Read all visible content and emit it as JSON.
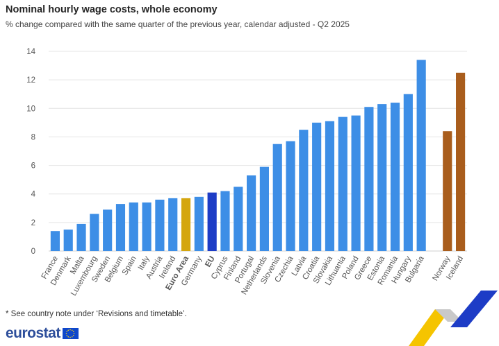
{
  "header": {
    "title": "Nominal hourly wage costs, whole economy",
    "subtitle": "% change compared with the same quarter of the previous year, calendar adjusted - Q2 2025"
  },
  "footnote": "* See country note under ‘Revisions and timetable’.",
  "logo_text": "eurostat",
  "colors": {
    "member": "#3d8ee6",
    "euro_area": "#d4a60e",
    "eu": "#1d3cc6",
    "efta": "#a95d1c",
    "grid": "#e4e4e4",
    "logo": "#2d4e9b"
  },
  "chart_data": {
    "type": "bar",
    "title": "Nominal hourly wage costs, whole economy",
    "subtitle": "% change compared with the same quarter of the previous year, calendar adjusted - Q2 2025",
    "ylim": [
      0,
      14
    ],
    "yticks": [
      0,
      2,
      4,
      6,
      8,
      10,
      12,
      14
    ],
    "grid": true,
    "bars": [
      {
        "label": "France",
        "value": 1.4,
        "group": "member"
      },
      {
        "label": "Denmark",
        "value": 1.5,
        "group": "member"
      },
      {
        "label": "Malta",
        "value": 1.9,
        "group": "member"
      },
      {
        "label": "Luxembourg",
        "value": 2.6,
        "group": "member"
      },
      {
        "label": "Sweden",
        "value": 2.9,
        "group": "member"
      },
      {
        "label": "Belgium",
        "value": 3.3,
        "group": "member"
      },
      {
        "label": "Spain",
        "value": 3.4,
        "group": "member"
      },
      {
        "label": "Italy",
        "value": 3.4,
        "group": "member"
      },
      {
        "label": "Austria",
        "value": 3.6,
        "group": "member"
      },
      {
        "label": "Ireland",
        "value": 3.7,
        "group": "member"
      },
      {
        "label": "Euro Area",
        "value": 3.7,
        "group": "euro_area",
        "bold": true
      },
      {
        "label": "Germany",
        "value": 3.8,
        "group": "member"
      },
      {
        "label": "EU",
        "value": 4.1,
        "group": "eu",
        "bold": true
      },
      {
        "label": "Cyprus",
        "value": 4.2,
        "group": "member"
      },
      {
        "label": "Finland",
        "value": 4.5,
        "group": "member"
      },
      {
        "label": "Portugal",
        "value": 5.3,
        "group": "member"
      },
      {
        "label": "Netherlands",
        "value": 5.9,
        "group": "member"
      },
      {
        "label": "Slovenia",
        "value": 7.5,
        "group": "member"
      },
      {
        "label": "Czechia",
        "value": 7.7,
        "group": "member"
      },
      {
        "label": "Latvia",
        "value": 8.5,
        "group": "member"
      },
      {
        "label": "Croatia",
        "value": 9.0,
        "group": "member"
      },
      {
        "label": "Slovakia",
        "value": 9.1,
        "group": "member"
      },
      {
        "label": "Lithuania",
        "value": 9.4,
        "group": "member"
      },
      {
        "label": "Poland",
        "value": 9.5,
        "group": "member"
      },
      {
        "label": "Greece",
        "value": 10.1,
        "group": "member"
      },
      {
        "label": "Estonia",
        "value": 10.3,
        "group": "member"
      },
      {
        "label": "Romania",
        "value": 10.4,
        "group": "member"
      },
      {
        "label": "Hungary",
        "value": 11.0,
        "group": "member"
      },
      {
        "label": "Bulgaria",
        "value": 13.4,
        "group": "member"
      },
      {
        "label": "",
        "value": null,
        "group": "gap"
      },
      {
        "label": "Norway",
        "value": 8.4,
        "group": "efta"
      },
      {
        "label": "Iceland",
        "value": 12.5,
        "group": "efta"
      }
    ]
  }
}
